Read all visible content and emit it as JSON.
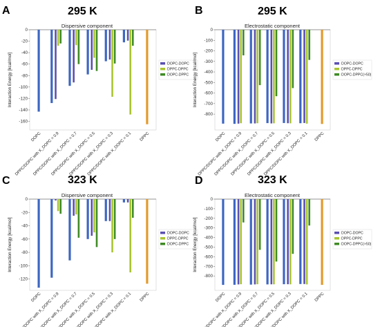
{
  "colors": {
    "blue": "#3d66c3",
    "orange": "#e39a2b",
    "purple": "#5a4fb2",
    "yellowgreen": "#a9c431",
    "darkgreen": "#3f8b25"
  },
  "categories": [
    "DOPC",
    "DPPC/DOPC with X_DOPC = 0.9",
    "DPPC/DOPC with X_DOPC = 0.7",
    "DPPC/DOPC with X_DOPC = 0.5",
    "DPPC/DOPC with X_DOPC = 0.3",
    "DPPC/DOPC with X_DOPC = 0.1",
    "DPPC"
  ],
  "chart_data": [
    {
      "panel": "A",
      "temperature": "295 K",
      "type": "bar",
      "title": "Dispersive component",
      "ylabel": "Interaction Energy [kcal/mol]",
      "ylim": [
        -175,
        0
      ],
      "yticks": [
        0,
        -20,
        -40,
        -60,
        -80,
        -100,
        -120,
        -140,
        -160
      ],
      "legend": [
        "DOPC-DOPC",
        "DPPC-DPPC",
        "DOPC-DPPC"
      ],
      "legend_position": "right",
      "pure": [
        -143,
        -128,
        -98,
        -78,
        -55,
        -22,
        -165
      ],
      "pairs": [
        [
          -121,
          -28,
          -24
        ],
        [
          -92,
          -27,
          -60
        ],
        [
          -70,
          -49,
          -72
        ],
        [
          -52,
          -117,
          -59
        ],
        [
          -19,
          -148,
          -28
        ]
      ]
    },
    {
      "panel": "B",
      "temperature": "295 K",
      "type": "bar",
      "title": "Electrostatic component",
      "ylabel": "Interaction Energy [kcal/mol]",
      "ylim": [
        -950,
        0
      ],
      "yticks": [
        0,
        -100,
        -200,
        -300,
        -400,
        -500,
        -600,
        -700,
        -800
      ],
      "legend": [
        "DOPC-DOPC",
        "DPPC-DPPC",
        "DOPC-DPPC(×50)"
      ],
      "legend_position": "right",
      "pure": [
        -890,
        -892,
        -888,
        -885,
        -884,
        -886,
        -893
      ],
      "pairs": [
        [
          -890,
          -886,
          -243
        ],
        [
          -888,
          -886,
          -525
        ],
        [
          -888,
          -887,
          -630
        ],
        [
          -886,
          -887,
          -553
        ],
        [
          -884,
          -890,
          -286
        ]
      ]
    },
    {
      "panel": "C",
      "temperature": "323 K",
      "type": "bar",
      "title": "Dispersive component",
      "ylabel": "Interaction Energy [kcal/mol]",
      "ylim": [
        -137,
        0
      ],
      "yticks": [
        0,
        -20,
        -40,
        -60,
        -80,
        -100,
        -120
      ],
      "legend": [
        "DOPC-DOPC",
        "DPPC-DPPC",
        "DOPC-DPPC"
      ],
      "legend_position": "right",
      "pure": [
        -133,
        -118,
        -92,
        -60,
        -33,
        -5,
        -127
      ],
      "pairs": [
        [
          -2,
          -18,
          -22
        ],
        [
          -25,
          -23,
          -58
        ],
        [
          -55,
          -50,
          -72
        ],
        [
          -33,
          -80,
          -60
        ],
        [
          -5,
          -110,
          -28
        ]
      ]
    },
    {
      "panel": "D",
      "temperature": "323 K",
      "type": "bar",
      "title": "Electrostatic component",
      "ylabel": "Interaction Energy [kcal/mol]",
      "ylim": [
        -950,
        0
      ],
      "yticks": [
        0,
        -100,
        -200,
        -300,
        -400,
        -500,
        -600,
        -700,
        -800
      ],
      "legend": [
        "DOPC-DOPC",
        "DPPC-DPPC",
        "DOPC-DPPC(×50)"
      ],
      "legend_position": "right",
      "pure": [
        -893,
        -892,
        -890,
        -888,
        -886,
        -884,
        -893
      ],
      "pairs": [
        [
          -888,
          -886,
          -243
        ],
        [
          -888,
          -886,
          -528
        ],
        [
          -887,
          -887,
          -650
        ],
        [
          -886,
          -887,
          -570
        ],
        [
          -884,
          -888,
          -275
        ]
      ]
    }
  ]
}
